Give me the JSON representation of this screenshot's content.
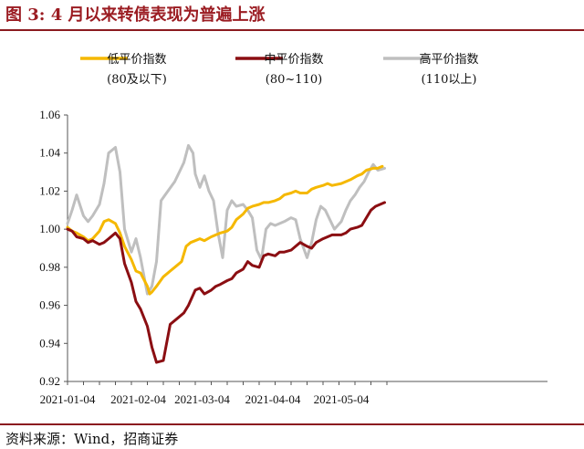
{
  "title": "图 3:  4 月以来转债表现为普遍上涨",
  "source": "资料来源：Wind，招商证券",
  "chart_data": {
    "type": "line",
    "ylim": [
      0.92,
      1.06
    ],
    "yticks": [
      "1.06",
      "1.04",
      "1.02",
      "1.00",
      "0.98",
      "0.96",
      "0.94",
      "0.92"
    ],
    "xticks": [
      "2021-01-04",
      "2021-02-04",
      "2021-03-04",
      "2021-04-04",
      "2021-05-04"
    ],
    "grid": false,
    "legend": "top",
    "series": [
      {
        "name": "低平价指数",
        "sub": "(80及以下)",
        "color": "#f5b800",
        "points": [
          [
            "2021-01-04",
            1.001
          ],
          [
            "2021-01-06",
            0.999
          ],
          [
            "2021-01-08",
            0.998
          ],
          [
            "2021-01-11",
            0.996
          ],
          [
            "2021-01-13",
            0.994
          ],
          [
            "2021-01-15",
            0.995
          ],
          [
            "2021-01-18",
            0.999
          ],
          [
            "2021-01-20",
            1.004
          ],
          [
            "2021-01-22",
            1.005
          ],
          [
            "2021-01-25",
            1.003
          ],
          [
            "2021-01-27",
            0.998
          ],
          [
            "2021-01-29",
            0.991
          ],
          [
            "2021-02-01",
            0.984
          ],
          [
            "2021-02-03",
            0.978
          ],
          [
            "2021-02-05",
            0.977
          ],
          [
            "2021-02-08",
            0.97
          ],
          [
            "2021-02-09",
            0.966
          ],
          [
            "2021-02-10",
            0.967
          ],
          [
            "2021-02-12",
            0.97
          ],
          [
            "2021-02-15",
            0.975
          ],
          [
            "2021-02-18",
            0.978
          ],
          [
            "2021-02-21",
            0.981
          ],
          [
            "2021-02-23",
            0.983
          ],
          [
            "2021-02-25",
            0.991
          ],
          [
            "2021-02-27",
            0.993
          ],
          [
            "2021-03-01",
            0.994
          ],
          [
            "2021-03-03",
            0.995
          ],
          [
            "2021-03-05",
            0.994
          ],
          [
            "2021-03-08",
            0.996
          ],
          [
            "2021-03-10",
            0.997
          ],
          [
            "2021-03-12",
            0.998
          ],
          [
            "2021-03-15",
            0.999
          ],
          [
            "2021-03-17",
            1.001
          ],
          [
            "2021-03-19",
            1.005
          ],
          [
            "2021-03-22",
            1.008
          ],
          [
            "2021-03-24",
            1.011
          ],
          [
            "2021-03-26",
            1.012
          ],
          [
            "2021-03-29",
            1.013
          ],
          [
            "2021-03-31",
            1.014
          ],
          [
            "2021-04-02",
            1.014
          ],
          [
            "2021-04-05",
            1.015
          ],
          [
            "2021-04-07",
            1.016
          ],
          [
            "2021-04-09",
            1.018
          ],
          [
            "2021-04-12",
            1.019
          ],
          [
            "2021-04-14",
            1.02
          ],
          [
            "2021-04-16",
            1.019
          ],
          [
            "2021-04-19",
            1.019
          ],
          [
            "2021-04-21",
            1.021
          ],
          [
            "2021-04-23",
            1.022
          ],
          [
            "2021-04-26",
            1.023
          ],
          [
            "2021-04-28",
            1.024
          ],
          [
            "2021-04-30",
            1.023
          ],
          [
            "2021-05-04",
            1.024
          ],
          [
            "2021-05-06",
            1.025
          ],
          [
            "2021-05-08",
            1.026
          ],
          [
            "2021-05-11",
            1.028
          ],
          [
            "2021-05-13",
            1.029
          ],
          [
            "2021-05-15",
            1.031
          ],
          [
            "2021-05-18",
            1.032
          ],
          [
            "2021-05-20",
            1.032
          ],
          [
            "2021-05-22",
            1.033
          ]
        ]
      },
      {
        "name": "中平价指数",
        "sub": "(80~110)",
        "color": "#8b0e12",
        "points": [
          [
            "2021-01-04",
            1.0
          ],
          [
            "2021-01-06",
            0.999
          ],
          [
            "2021-01-08",
            0.996
          ],
          [
            "2021-01-11",
            0.995
          ],
          [
            "2021-01-13",
            0.993
          ],
          [
            "2021-01-15",
            0.994
          ],
          [
            "2021-01-18",
            0.992
          ],
          [
            "2021-01-20",
            0.993
          ],
          [
            "2021-01-22",
            0.995
          ],
          [
            "2021-01-25",
            0.998
          ],
          [
            "2021-01-27",
            0.995
          ],
          [
            "2021-01-29",
            0.982
          ],
          [
            "2021-02-01",
            0.972
          ],
          [
            "2021-02-03",
            0.962
          ],
          [
            "2021-02-05",
            0.958
          ],
          [
            "2021-02-08",
            0.949
          ],
          [
            "2021-02-10",
            0.938
          ],
          [
            "2021-02-12",
            0.93
          ],
          [
            "2021-02-15",
            0.931
          ],
          [
            "2021-02-18",
            0.95
          ],
          [
            "2021-02-21",
            0.953
          ],
          [
            "2021-02-24",
            0.956
          ],
          [
            "2021-02-26",
            0.96
          ],
          [
            "2021-03-01",
            0.968
          ],
          [
            "2021-03-03",
            0.969
          ],
          [
            "2021-03-05",
            0.966
          ],
          [
            "2021-03-08",
            0.968
          ],
          [
            "2021-03-10",
            0.97
          ],
          [
            "2021-03-12",
            0.971
          ],
          [
            "2021-03-15",
            0.973
          ],
          [
            "2021-03-17",
            0.974
          ],
          [
            "2021-03-19",
            0.977
          ],
          [
            "2021-03-22",
            0.979
          ],
          [
            "2021-03-24",
            0.983
          ],
          [
            "2021-03-26",
            0.981
          ],
          [
            "2021-03-29",
            0.98
          ],
          [
            "2021-03-31",
            0.986
          ],
          [
            "2021-04-02",
            0.987
          ],
          [
            "2021-04-05",
            0.986
          ],
          [
            "2021-04-07",
            0.988
          ],
          [
            "2021-04-09",
            0.988
          ],
          [
            "2021-04-12",
            0.989
          ],
          [
            "2021-04-14",
            0.991
          ],
          [
            "2021-04-16",
            0.993
          ],
          [
            "2021-04-19",
            0.991
          ],
          [
            "2021-04-21",
            0.99
          ],
          [
            "2021-04-23",
            0.993
          ],
          [
            "2021-04-26",
            0.995
          ],
          [
            "2021-04-28",
            0.996
          ],
          [
            "2021-04-30",
            0.997
          ],
          [
            "2021-05-04",
            0.997
          ],
          [
            "2021-05-06",
            0.998
          ],
          [
            "2021-05-08",
            1.0
          ],
          [
            "2021-05-11",
            1.001
          ],
          [
            "2021-05-13",
            1.002
          ],
          [
            "2021-05-15",
            1.006
          ],
          [
            "2021-05-17",
            1.01
          ],
          [
            "2021-05-19",
            1.012
          ],
          [
            "2021-05-21",
            1.013
          ],
          [
            "2021-05-23",
            1.014
          ]
        ]
      },
      {
        "name": "高平价指数",
        "sub": "(110以上)",
        "color": "#bfbfbf",
        "points": [
          [
            "2021-01-04",
            1.003
          ],
          [
            "2021-01-06",
            1.01
          ],
          [
            "2021-01-08",
            1.018
          ],
          [
            "2021-01-11",
            1.007
          ],
          [
            "2021-01-13",
            1.004
          ],
          [
            "2021-01-15",
            1.007
          ],
          [
            "2021-01-18",
            1.013
          ],
          [
            "2021-01-20",
            1.024
          ],
          [
            "2021-01-22",
            1.04
          ],
          [
            "2021-01-25",
            1.043
          ],
          [
            "2021-01-27",
            1.03
          ],
          [
            "2021-01-29",
            1.0
          ],
          [
            "2021-02-01",
            0.988
          ],
          [
            "2021-02-03",
            0.995
          ],
          [
            "2021-02-05",
            0.985
          ],
          [
            "2021-02-08",
            0.966
          ],
          [
            "2021-02-10",
            0.97
          ],
          [
            "2021-02-12",
            0.983
          ],
          [
            "2021-02-14",
            1.015
          ],
          [
            "2021-02-17",
            1.02
          ],
          [
            "2021-02-20",
            1.025
          ],
          [
            "2021-02-22",
            1.03
          ],
          [
            "2021-02-24",
            1.035
          ],
          [
            "2021-02-26",
            1.044
          ],
          [
            "2021-02-28",
            1.04
          ],
          [
            "2021-03-01",
            1.029
          ],
          [
            "2021-03-03",
            1.022
          ],
          [
            "2021-03-05",
            1.028
          ],
          [
            "2021-03-07",
            1.02
          ],
          [
            "2021-03-09",
            1.015
          ],
          [
            "2021-03-11",
            0.998
          ],
          [
            "2021-03-13",
            0.985
          ],
          [
            "2021-03-15",
            1.01
          ],
          [
            "2021-03-17",
            1.015
          ],
          [
            "2021-03-19",
            1.012
          ],
          [
            "2021-03-22",
            1.013
          ],
          [
            "2021-03-24",
            1.01
          ],
          [
            "2021-03-26",
            1.006
          ],
          [
            "2021-03-28",
            0.989
          ],
          [
            "2021-03-30",
            0.984
          ],
          [
            "2021-04-01",
            1.0
          ],
          [
            "2021-04-03",
            1.003
          ],
          [
            "2021-04-05",
            1.002
          ],
          [
            "2021-04-07",
            1.003
          ],
          [
            "2021-04-09",
            1.004
          ],
          [
            "2021-04-12",
            1.006
          ],
          [
            "2021-04-14",
            1.005
          ],
          [
            "2021-04-16",
            0.995
          ],
          [
            "2021-04-19",
            0.985
          ],
          [
            "2021-04-21",
            0.993
          ],
          [
            "2021-04-23",
            1.005
          ],
          [
            "2021-04-25",
            1.012
          ],
          [
            "2021-04-27",
            1.01
          ],
          [
            "2021-04-29",
            1.005
          ],
          [
            "2021-05-01",
            1.0
          ],
          [
            "2021-05-04",
            1.004
          ],
          [
            "2021-05-06",
            1.01
          ],
          [
            "2021-05-08",
            1.015
          ],
          [
            "2021-05-10",
            1.018
          ],
          [
            "2021-05-12",
            1.022
          ],
          [
            "2021-05-14",
            1.025
          ],
          [
            "2021-05-16",
            1.03
          ],
          [
            "2021-05-18",
            1.034
          ],
          [
            "2021-05-20",
            1.031
          ],
          [
            "2021-05-23",
            1.032
          ]
        ]
      }
    ]
  }
}
